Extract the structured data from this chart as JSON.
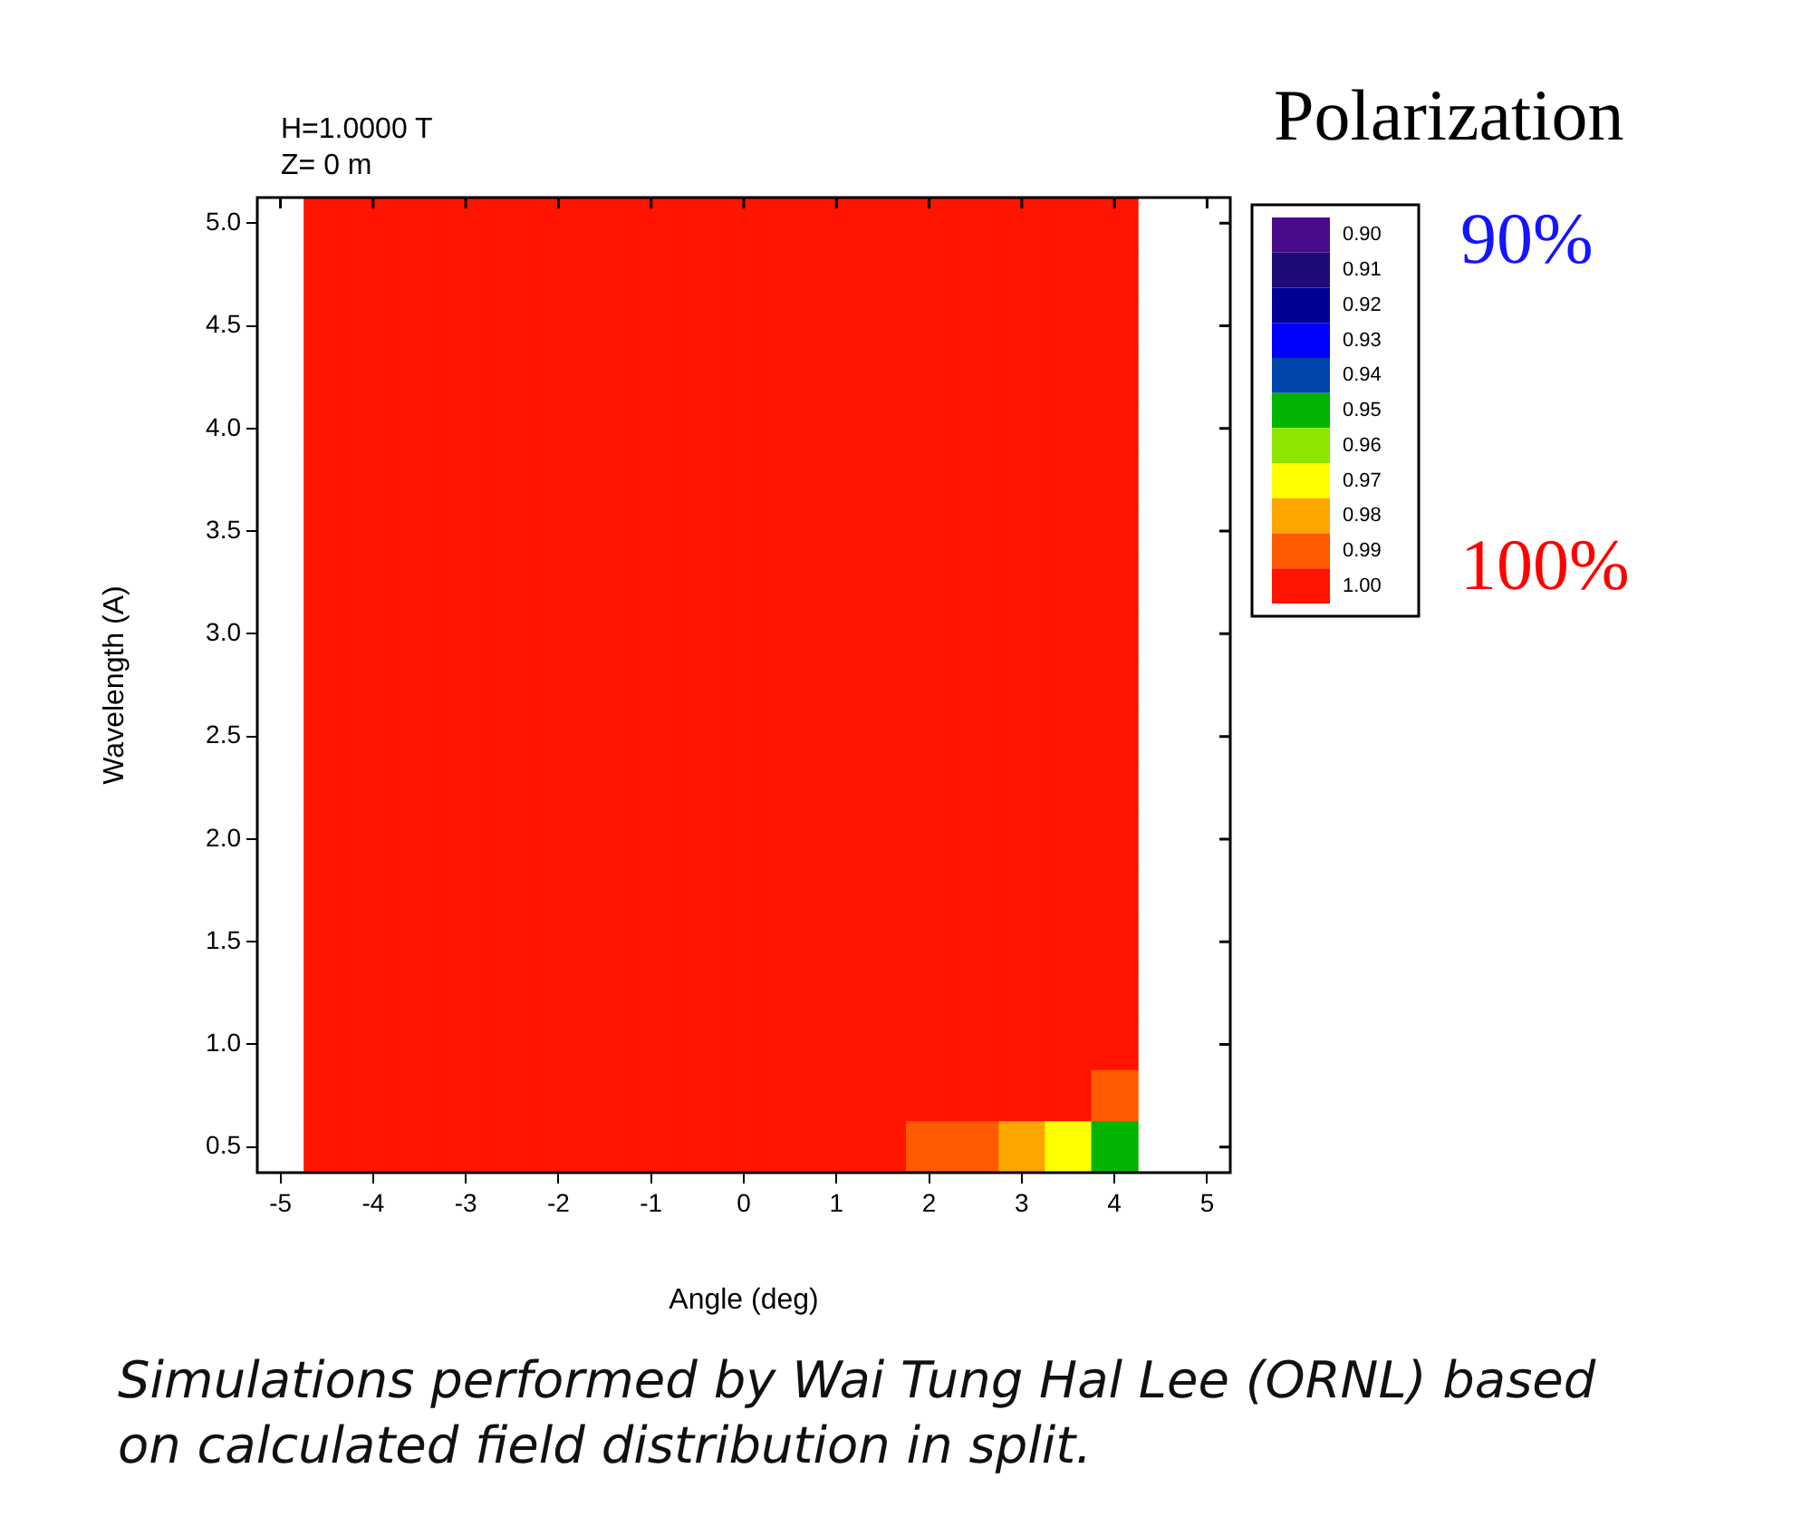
{
  "chart_data": {
    "type": "heatmap",
    "legend_title": "Polarization",
    "xlabel": "Angle (deg)",
    "ylabel": "Wavelength (A)",
    "annotations": [
      "H=1.0000 T",
      "Z= 0 m",
      "90%",
      "100%",
      "Simulations performed by Wai Tung Hal Lee (ORNL) based on calculated field distribution in split."
    ],
    "categories": [
      "-5",
      null,
      "-4",
      null,
      "-3",
      null,
      "-2",
      null,
      "-1",
      null,
      "0",
      null,
      "1",
      null,
      "2",
      null,
      "3",
      null,
      "4",
      null,
      "5"
    ],
    "y_categories": [
      "5.0",
      null,
      "4.5",
      null,
      "4.0",
      null,
      "3.5",
      null,
      "3.0",
      null,
      "2.5",
      null,
      "2.0",
      null,
      "1.5",
      null,
      "1.0",
      null,
      "0.5"
    ],
    "cells": [
      [
        null,
        1,
        1,
        1,
        1,
        1,
        1,
        1,
        1,
        1,
        1,
        1,
        1,
        1,
        1,
        1,
        1,
        1,
        1,
        null,
        null
      ],
      [
        null,
        1,
        1,
        1,
        1,
        1,
        1,
        1,
        1,
        1,
        1,
        1,
        1,
        1,
        1,
        1,
        1,
        1,
        1,
        null,
        null
      ],
      [
        null,
        1,
        1,
        1,
        1,
        1,
        1,
        1,
        1,
        1,
        1,
        1,
        1,
        1,
        1,
        1,
        1,
        1,
        1,
        null,
        null
      ],
      [
        null,
        1,
        1,
        1,
        1,
        1,
        1,
        1,
        1,
        1,
        1,
        1,
        1,
        1,
        1,
        1,
        1,
        1,
        1,
        null,
        null
      ],
      [
        null,
        1,
        1,
        1,
        1,
        1,
        1,
        1,
        1,
        1,
        1,
        1,
        1,
        1,
        1,
        1,
        1,
        1,
        1,
        null,
        null
      ],
      [
        null,
        1,
        1,
        1,
        1,
        1,
        1,
        1,
        1,
        1,
        1,
        1,
        1,
        1,
        1,
        1,
        1,
        1,
        1,
        null,
        null
      ],
      [
        null,
        1,
        1,
        1,
        1,
        1,
        1,
        1,
        1,
        1,
        1,
        1,
        1,
        1,
        1,
        1,
        1,
        1,
        1,
        null,
        null
      ],
      [
        null,
        1,
        1,
        1,
        1,
        1,
        1,
        1,
        1,
        1,
        1,
        1,
        1,
        1,
        1,
        1,
        1,
        1,
        1,
        null,
        null
      ],
      [
        null,
        1,
        1,
        1,
        1,
        1,
        1,
        1,
        1,
        1,
        1,
        1,
        1,
        1,
        1,
        1,
        1,
        1,
        1,
        null,
        null
      ],
      [
        null,
        1,
        1,
        1,
        1,
        1,
        1,
        1,
        1,
        1,
        1,
        1,
        1,
        1,
        1,
        1,
        1,
        1,
        1,
        null,
        null
      ],
      [
        null,
        1,
        1,
        1,
        1,
        1,
        1,
        1,
        1,
        1,
        1,
        1,
        1,
        1,
        1,
        1,
        1,
        1,
        1,
        null,
        null
      ],
      [
        null,
        1,
        1,
        1,
        1,
        1,
        1,
        1,
        1,
        1,
        1,
        1,
        1,
        1,
        1,
        1,
        1,
        1,
        1,
        null,
        null
      ],
      [
        null,
        1,
        1,
        1,
        1,
        1,
        1,
        1,
        1,
        1,
        1,
        1,
        1,
        1,
        1,
        1,
        1,
        1,
        1,
        null,
        null
      ],
      [
        null,
        1,
        1,
        1,
        1,
        1,
        1,
        1,
        1,
        1,
        1,
        1,
        1,
        1,
        1,
        1,
        1,
        1,
        1,
        null,
        null
      ],
      [
        null,
        1,
        1,
        1,
        1,
        1,
        1,
        1,
        1,
        1,
        1,
        1,
        1,
        1,
        1,
        1,
        1,
        1,
        1,
        null,
        null
      ],
      [
        null,
        1,
        1,
        1,
        1,
        1,
        1,
        1,
        1,
        1,
        1,
        1,
        1,
        1,
        1,
        1,
        1,
        1,
        1,
        null,
        null
      ],
      [
        null,
        1,
        1,
        1,
        1,
        1,
        1,
        1,
        1,
        1,
        1,
        1,
        1,
        1,
        1,
        1,
        1,
        1,
        1,
        null,
        null
      ],
      [
        null,
        1,
        1,
        1,
        1,
        1,
        1,
        1,
        1,
        1,
        1,
        1,
        1,
        1,
        1,
        1,
        1,
        1,
        0.99,
        null,
        null
      ],
      [
        null,
        1,
        1,
        1,
        1,
        1,
        1,
        1,
        1,
        1,
        1,
        1,
        1,
        1,
        0.99,
        0.99,
        0.98,
        0.97,
        0.95,
        null,
        null
      ]
    ],
    "colors": [
      "#4a0a8c",
      "#1e0a78",
      "#000096",
      "#0000ff",
      "#0046aa",
      "#00b400",
      "#8ce600",
      "#ffff00",
      "#ffa500",
      "#ff5a00",
      "#ff1400"
    ],
    "clim": [
      0.895,
      1.005
    ],
    "cticks": [
      {
        "value": 0.9,
        "label": "0.90"
      },
      {
        "value": 0.91,
        "label": "0.91"
      },
      {
        "value": 0.92,
        "label": "0.92"
      },
      {
        "value": 0.93,
        "label": "0.93"
      },
      {
        "value": 0.94,
        "label": "0.94"
      },
      {
        "value": 0.95,
        "label": "0.95"
      },
      {
        "value": 0.96,
        "label": "0.96"
      },
      {
        "value": 0.97,
        "label": "0.97"
      },
      {
        "value": 0.98,
        "label": "0.98"
      },
      {
        "value": 0.99,
        "label": "0.99"
      },
      {
        "value": 1.0,
        "label": "1.00"
      }
    ],
    "grid": false
  }
}
